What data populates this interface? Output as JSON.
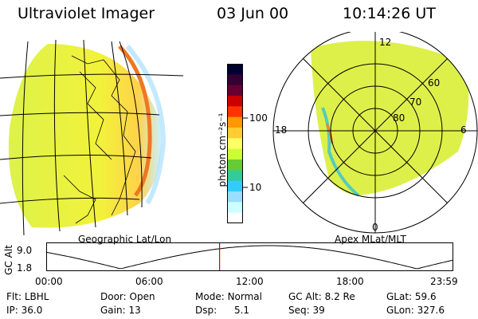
{
  "header": {
    "instrument": "Ultraviolet Imager",
    "date": "03 Jun 00",
    "time": "10:14:26 UT"
  },
  "left_panel": {
    "label": "Geographic Lat/Lon"
  },
  "colorbar": {
    "unit_label": "photon cm⁻²s⁻¹",
    "tick_100": "100",
    "tick_10": "10",
    "colors": [
      "#000033",
      "#330033",
      "#660033",
      "#cc0000",
      "#ff3300",
      "#ff9900",
      "#ffcc33",
      "#ffff66",
      "#ccff33",
      "#66cc33",
      "#33cc99",
      "#33ccff",
      "#99ddff",
      "#ccffff",
      "#ffffff"
    ]
  },
  "polar": {
    "label": "Apex MLat/MLT",
    "mlt_12": "12",
    "mlt_18": "18",
    "mlt_6": "6",
    "mlt_0": "0",
    "lat_60": "60",
    "lat_70": "70",
    "lat_80": "80"
  },
  "altitude_plot": {
    "ylabel": "GC Alt",
    "y_top": "9.0",
    "y_bottom": "1.8",
    "x_ticks": [
      "00:00",
      "06:00",
      "12:00",
      "18:00",
      "23:59"
    ],
    "current_time_marker_hour": 10.24,
    "line_color": "#000000",
    "marker_color": "#cc0000"
  },
  "info": {
    "flt_label": "Flt:",
    "flt_value": "LBHL",
    "ip_label": "IP:",
    "ip_value": "36.0",
    "door_label": "Door:",
    "door_value": "Open",
    "gain_label": "Gain:",
    "gain_value": "13",
    "mode_label": "Mode:",
    "mode_value": "Normal",
    "dsp_label": "Dsp:",
    "dsp_value": "5.1",
    "gcalt_label": "GC Alt:",
    "gcalt_value": "8.2 Re",
    "seq_label": "Seq:",
    "seq_value": "39",
    "glat_label": "GLat:",
    "glat_value": "59.6",
    "glon_label": "GLon:",
    "glon_value": "327.6"
  }
}
